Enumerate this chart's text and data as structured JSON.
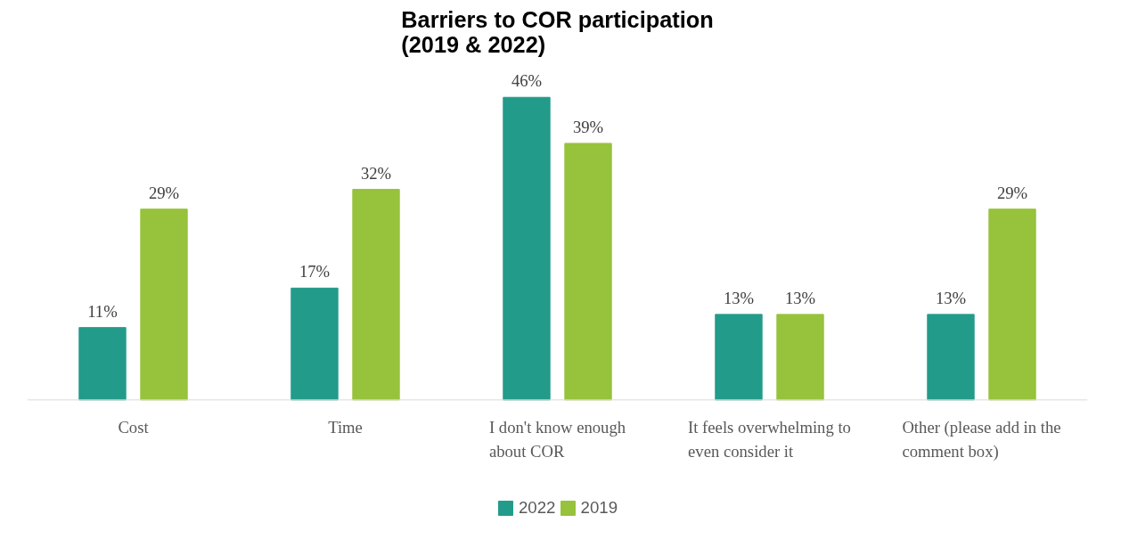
{
  "chart_data": {
    "type": "bar",
    "title": "Barriers to COR participation (2019 & 2022)",
    "categories": [
      "Cost",
      "Time",
      "I don't know enough about COR",
      "It feels overwhelming to even consider it",
      "Other (please add in the comment box)"
    ],
    "series": [
      {
        "name": "2022",
        "color": "#239b8a",
        "values": [
          11,
          17,
          46,
          13,
          13
        ],
        "value_labels": [
          "11%",
          "17%",
          "46%",
          "13%",
          "13%"
        ]
      },
      {
        "name": "2019",
        "color": "#97c23c",
        "values": [
          29,
          32,
          39,
          13,
          29
        ],
        "value_labels": [
          "29%",
          "32%",
          "39%",
          "13%",
          "29%"
        ]
      }
    ],
    "legend": "bottom"
  }
}
